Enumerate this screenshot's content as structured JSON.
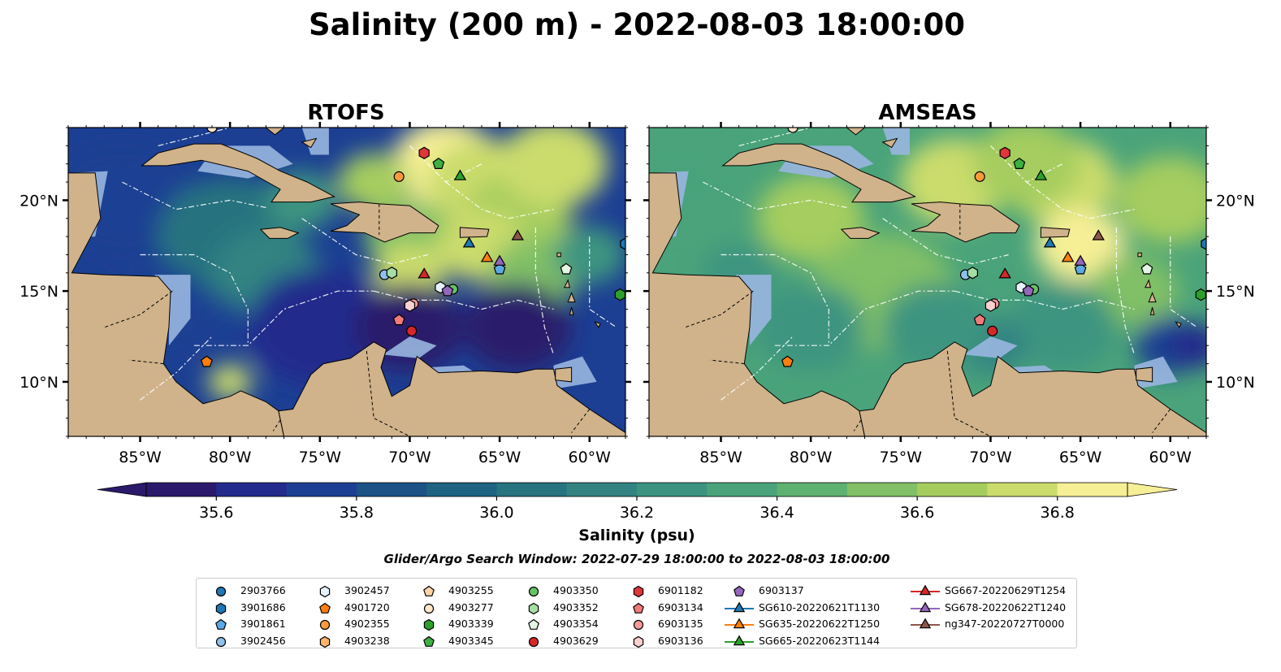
{
  "figure": {
    "title": "Salinity (200 m) - 2022-08-03 18:00:00",
    "subtitle": "Glider/Argo Search Window: 2022-07-29 18:00:00 to 2022-08-03 18:00:00"
  },
  "colors": {
    "land": "#d0b38b",
    "shallow_water": "#99b6e0",
    "colormap": [
      "#2b1a6b",
      "#232b8c",
      "#1c3f93",
      "#1c5286",
      "#1e6382",
      "#27737f",
      "#328382",
      "#3c9480",
      "#4aa37a",
      "#5fb170",
      "#81c066",
      "#a5cd5e",
      "#cbdc6c",
      "#f6ef96"
    ]
  },
  "chart_data": [
    {
      "type": "heatmap",
      "title": "RTOFS",
      "variable": "Salinity at 200 m",
      "xlim": [
        -89,
        -58
      ],
      "ylim": [
        7,
        24
      ],
      "xticks": [
        "85°W",
        "80°W",
        "75°W",
        "70°W",
        "65°W",
        "60°W"
      ],
      "yticks": [
        "10°N",
        "15°N",
        "20°N"
      ],
      "colormap_range": [
        35.5,
        36.9
      ],
      "description_regions": "Low salinity (~35.5-35.8) across western Caribbean and south of 15°N; higher salinity (~36.3-36.9) in eastern Caribbean and north of Hispaniola/Puerto Rico",
      "ytick_side": "left"
    },
    {
      "type": "heatmap",
      "title": "AMSEAS",
      "variable": "Salinity at 200 m",
      "xlim": [
        -89,
        -58
      ],
      "ylim": [
        7,
        24
      ],
      "xticks": [
        "85°W",
        "80°W",
        "75°W",
        "70°W",
        "65°W",
        "60°W"
      ],
      "yticks": [
        "10°N",
        "15°N",
        "20°N"
      ],
      "colormap_range": [
        35.5,
        36.9
      ],
      "description_regions": "Mostly moderate-high salinity (~36.2-36.7) across basin; highest (~36.8+) north of Greater Antilles and east near Lesser Antilles",
      "ytick_side": "right"
    }
  ],
  "colorbar": {
    "label": "Salinity (psu)",
    "min": 35.5,
    "max": 36.9,
    "step": 0.1,
    "tick_values": [
      35.6,
      35.8,
      36.0,
      36.2,
      36.4,
      36.6,
      36.8
    ],
    "tick_labels": [
      "35.6",
      "35.8",
      "36.0",
      "36.2",
      "36.4",
      "36.6",
      "36.8"
    ],
    "extend": "both"
  },
  "observations": [
    {
      "id": "2903766",
      "marker": "circle",
      "color": "#1f77b4",
      "lon": null,
      "lat": null
    },
    {
      "id": "3901686",
      "marker": "hexagon",
      "color": "#1f77b4",
      "lon": -58,
      "lat": 17.6
    },
    {
      "id": "3901861",
      "marker": "pentagon",
      "color": "#5aa9e6",
      "lon": -65,
      "lat": 16.2
    },
    {
      "id": "3902456",
      "marker": "circle",
      "color": "#8ec1ea",
      "lon": -71.4,
      "lat": 15.9
    },
    {
      "id": "3902457",
      "marker": "hexagon",
      "color": "#e6f1fb",
      "lon": -68.3,
      "lat": 15.2
    },
    {
      "id": "4901720",
      "marker": "pentagon",
      "color": "#ff7f0e",
      "lon": -81.3,
      "lat": 11.1
    },
    {
      "id": "4902355",
      "marker": "circle",
      "color": "#ff9a3c",
      "lon": -70.6,
      "lat": 21.3
    },
    {
      "id": "4903238",
      "marker": "hexagon",
      "color": "#ffb36b",
      "lon": null,
      "lat": null
    },
    {
      "id": "4903255",
      "marker": "pentagon",
      "color": "#ffd3a8",
      "lon": null,
      "lat": null
    },
    {
      "id": "4903277",
      "marker": "circle",
      "color": "#ffe6cc",
      "lon": -81.0,
      "lat": 24.0
    },
    {
      "id": "4903339",
      "marker": "hexagon",
      "color": "#2ca02c",
      "lon": -58.3,
      "lat": 14.8
    },
    {
      "id": "4903345",
      "marker": "pentagon",
      "color": "#3cb043",
      "lon": -68.4,
      "lat": 22.0
    },
    {
      "id": "4903350",
      "marker": "circle",
      "color": "#66c266",
      "lon": -67.6,
      "lat": 15.1
    },
    {
      "id": "4903352",
      "marker": "hexagon",
      "color": "#a5dea5",
      "lon": -71.0,
      "lat": 16.0
    },
    {
      "id": "4903354",
      "marker": "pentagon",
      "color": "#e3f5e3",
      "lon": -61.3,
      "lat": 16.2
    },
    {
      "id": "4903629",
      "marker": "circle",
      "color": "#d62728",
      "lon": -69.9,
      "lat": 12.8
    },
    {
      "id": "6901182",
      "marker": "hexagon",
      "color": "#e0363a",
      "lon": -69.2,
      "lat": 22.6
    },
    {
      "id": "6903134",
      "marker": "pentagon",
      "color": "#f27a7b",
      "lon": -70.6,
      "lat": 13.4
    },
    {
      "id": "6903135",
      "marker": "circle",
      "color": "#f79a9b",
      "lon": -69.8,
      "lat": 14.3
    },
    {
      "id": "6903136",
      "marker": "hexagon",
      "color": "#fbd0d0",
      "lon": -70.0,
      "lat": 14.2
    },
    {
      "id": "6903137",
      "marker": "pentagon",
      "color": "#9467bd",
      "lon": -67.9,
      "lat": 15.0
    },
    {
      "id": "SG610-20220621T1130",
      "marker": "triangle",
      "color": "#1f77b4",
      "line": true,
      "lon": -66.7,
      "lat": 17.6
    },
    {
      "id": "SG635-20220622T1250",
      "marker": "triangle",
      "color": "#ff7f0e",
      "line": true,
      "lon": -65.7,
      "lat": 16.8
    },
    {
      "id": "SG665-20220623T1144",
      "marker": "triangle",
      "color": "#2ca02c",
      "line": true,
      "lon": -67.2,
      "lat": 21.3
    },
    {
      "id": "SG667-20220629T1254",
      "marker": "triangle",
      "color": "#d62728",
      "line": true,
      "lon": -69.2,
      "lat": 15.9
    },
    {
      "id": "SG678-20220622T1240",
      "marker": "triangle",
      "color": "#9467bd",
      "line": true,
      "lon": -65.0,
      "lat": 16.6
    },
    {
      "id": "ng347-20220727T0000",
      "marker": "triangle",
      "color": "#8c564b",
      "line": true,
      "lon": -64.0,
      "lat": 18.0
    }
  ],
  "legend": {
    "columns": [
      [
        "2903766",
        "3901686",
        "3901861",
        "3902456"
      ],
      [
        "3902457",
        "4901720",
        "4902355",
        "4903238"
      ],
      [
        "4903255",
        "4903277",
        "4903339",
        "4903345"
      ],
      [
        "4903350",
        "4903352",
        "4903354",
        "4903629"
      ],
      [
        "6901182",
        "6903134",
        "6903135",
        "6903136"
      ],
      [
        "6903137",
        "SG610-20220621T1130",
        "SG635-20220622T1250",
        "SG665-20220623T1144"
      ],
      [
        "SG667-20220629T1254",
        "SG678-20220622T1240",
        "ng347-20220727T0000"
      ]
    ]
  }
}
